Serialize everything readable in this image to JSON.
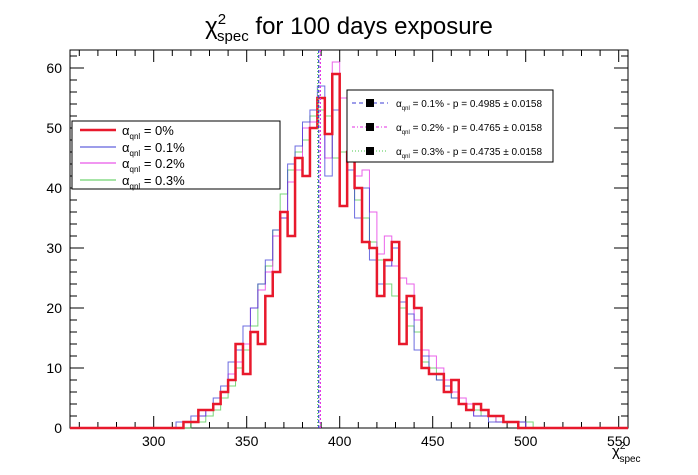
{
  "chart_data": {
    "type": "histogram",
    "title": {
      "prefix": "χ",
      "sup": "2",
      "sub": "spec",
      "suffix": " for 100 days exposure"
    },
    "xlabel": {
      "base": "χ",
      "sup": "2",
      "sub": "spec"
    },
    "ylabel": "",
    "xlim": [
      255,
      555
    ],
    "ylim": [
      0,
      63
    ],
    "x_ticks": [
      300,
      350,
      400,
      450,
      500,
      550
    ],
    "y_ticks": [
      0,
      10,
      20,
      30,
      40,
      50,
      60
    ],
    "bin_width": 4,
    "bin_start": 256,
    "series": [
      {
        "name": "0%",
        "color": "#e8192c",
        "width": 2.5,
        "counts": [
          0,
          0,
          0,
          0,
          0,
          0,
          0,
          0,
          0,
          0,
          0,
          0,
          0,
          0,
          0,
          1,
          1,
          3,
          3,
          4,
          6,
          8,
          14,
          9,
          16,
          14,
          22,
          26,
          36,
          32,
          45,
          42,
          50,
          55,
          49,
          59,
          37,
          46,
          40,
          31,
          30,
          22,
          28,
          31,
          14,
          22,
          20,
          10,
          9,
          9,
          6,
          8,
          4,
          3,
          4,
          3,
          2,
          2,
          1,
          1,
          0,
          0,
          0,
          0,
          0,
          0,
          0,
          0,
          0,
          0,
          0,
          0,
          0,
          0,
          0
        ]
      },
      {
        "name": "0.1%",
        "color": "#3b3bd6",
        "width": 1,
        "counts": [
          0,
          0,
          0,
          0,
          0,
          0,
          0,
          0,
          0,
          0,
          0,
          0,
          0,
          0,
          1,
          1,
          2,
          2,
          3,
          5,
          7,
          11,
          13,
          17,
          20,
          24,
          28,
          33,
          35,
          44,
          47,
          51,
          53,
          57,
          42,
          53,
          37,
          43,
          35,
          40,
          28,
          24,
          27,
          30,
          21,
          19,
          13,
          12,
          9,
          8,
          7,
          5,
          4,
          3,
          2,
          2,
          1,
          1,
          1,
          1,
          1,
          0,
          0,
          0,
          0,
          0,
          0,
          0,
          0,
          0,
          0,
          0,
          0,
          0,
          0
        ]
      },
      {
        "name": "0.2%",
        "color": "#e32ee3",
        "width": 1,
        "counts": [
          0,
          0,
          0,
          0,
          0,
          0,
          0,
          0,
          0,
          0,
          0,
          0,
          0,
          0,
          0,
          1,
          1,
          2,
          3,
          4,
          6,
          9,
          11,
          14,
          20,
          23,
          26,
          32,
          35,
          41,
          43,
          50,
          51,
          55,
          45,
          61,
          55,
          49,
          42,
          43,
          36,
          29,
          32,
          27,
          25,
          24,
          18,
          13,
          12,
          10,
          8,
          6,
          5,
          4,
          2,
          2,
          2,
          1,
          1,
          1,
          1,
          0,
          0,
          0,
          0,
          0,
          0,
          0,
          0,
          0,
          0,
          0,
          0,
          0,
          0
        ]
      },
      {
        "name": "0.3%",
        "color": "#4cc94c",
        "width": 1,
        "counts": [
          0,
          0,
          0,
          0,
          0,
          0,
          0,
          0,
          0,
          0,
          0,
          0,
          0,
          0,
          0,
          0,
          1,
          1,
          2,
          3,
          5,
          7,
          10,
          13,
          17,
          24,
          27,
          33,
          39,
          43,
          46,
          48,
          52,
          53,
          52,
          45,
          46,
          45,
          38,
          35,
          31,
          28,
          24,
          22,
          20,
          17,
          16,
          11,
          10,
          8,
          6,
          5,
          4,
          3,
          3,
          2,
          2,
          1,
          1,
          1,
          1,
          1,
          0,
          0,
          0,
          0,
          0,
          0,
          0,
          0,
          0,
          0,
          0,
          0,
          0
        ]
      }
    ],
    "vlines": [
      {
        "x": 388.7,
        "color": "#3b3bd6",
        "dash": "3,2"
      },
      {
        "x": 389.6,
        "color": "#e32ee3",
        "dash": "2,2"
      },
      {
        "x": 388.2,
        "color": "#4cc94c",
        "dash": "1,2"
      }
    ],
    "legend_main": {
      "placement": "left",
      "prefix": "α",
      "sub": "qnl",
      "labels": [
        " = 0%",
        " = 0.1%",
        " = 0.2%",
        " = 0.3%"
      ]
    },
    "legend_pvalues": {
      "placement": "top-right",
      "entries": [
        {
          "prefix": "α",
          "sub": "qnl",
          "text": " = 0.1% - p = 0.4985 ± 0.0158",
          "color": "#3b3bd6",
          "dash": "4,3"
        },
        {
          "prefix": "α",
          "sub": "qnl",
          "text": " = 0.2% - p = 0.4765 ± 0.0158",
          "color": "#e32ee3",
          "dash": "3,2,1,2"
        },
        {
          "prefix": "α",
          "sub": "qnl",
          "text": " = 0.3% - p = 0.4735 ± 0.0158",
          "color": "#4cc94c",
          "dash": "1,2"
        }
      ]
    }
  }
}
